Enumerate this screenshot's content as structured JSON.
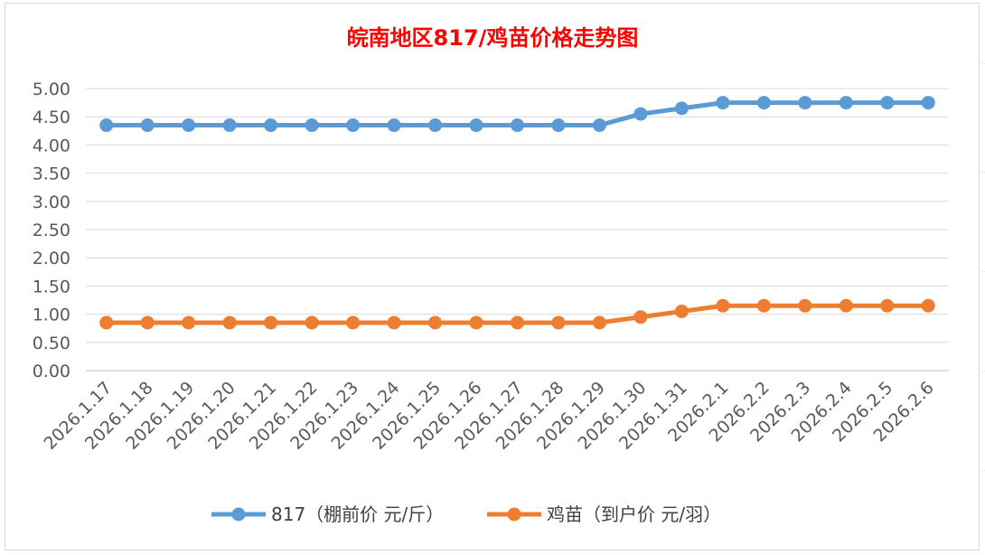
{
  "chart_data": {
    "type": "line",
    "title": "皖南地区817/鸡苗价格走势图",
    "xlabel": "",
    "ylabel": "",
    "categories": [
      "2026.1.17",
      "2026.1.18",
      "2026.1.19",
      "2026.1.20",
      "2026.1.21",
      "2026.1.22",
      "2026.1.23",
      "2026.1.24",
      "2026.1.25",
      "2026.1.26",
      "2026.1.27",
      "2026.1.28",
      "2026.1.29",
      "2026.1.30",
      "2026.1.31",
      "2026.2.1",
      "2026.2.2",
      "2026.2.3",
      "2026.2.4",
      "2026.2.5",
      "2026.2.6"
    ],
    "ylim": [
      0,
      5
    ],
    "ytick_step": 0.5,
    "ytick_labels": [
      "0.00",
      "0.50",
      "1.00",
      "1.50",
      "2.00",
      "2.50",
      "3.00",
      "3.50",
      "4.00",
      "4.50",
      "5.00"
    ],
    "grid": true,
    "legend_position": "bottom",
    "series": [
      {
        "name": "817（棚前价 元/斤）",
        "color": "#5b9bd5",
        "values": [
          4.35,
          4.35,
          4.35,
          4.35,
          4.35,
          4.35,
          4.35,
          4.35,
          4.35,
          4.35,
          4.35,
          4.35,
          4.35,
          4.55,
          4.65,
          4.75,
          4.75,
          4.75,
          4.75,
          4.75,
          4.75
        ]
      },
      {
        "name": "鸡苗（到户价 元/羽）",
        "color": "#ed7d31",
        "values": [
          0.85,
          0.85,
          0.85,
          0.85,
          0.85,
          0.85,
          0.85,
          0.85,
          0.85,
          0.85,
          0.85,
          0.85,
          0.85,
          0.95,
          1.05,
          1.15,
          1.15,
          1.15,
          1.15,
          1.15,
          1.15
        ]
      }
    ]
  }
}
